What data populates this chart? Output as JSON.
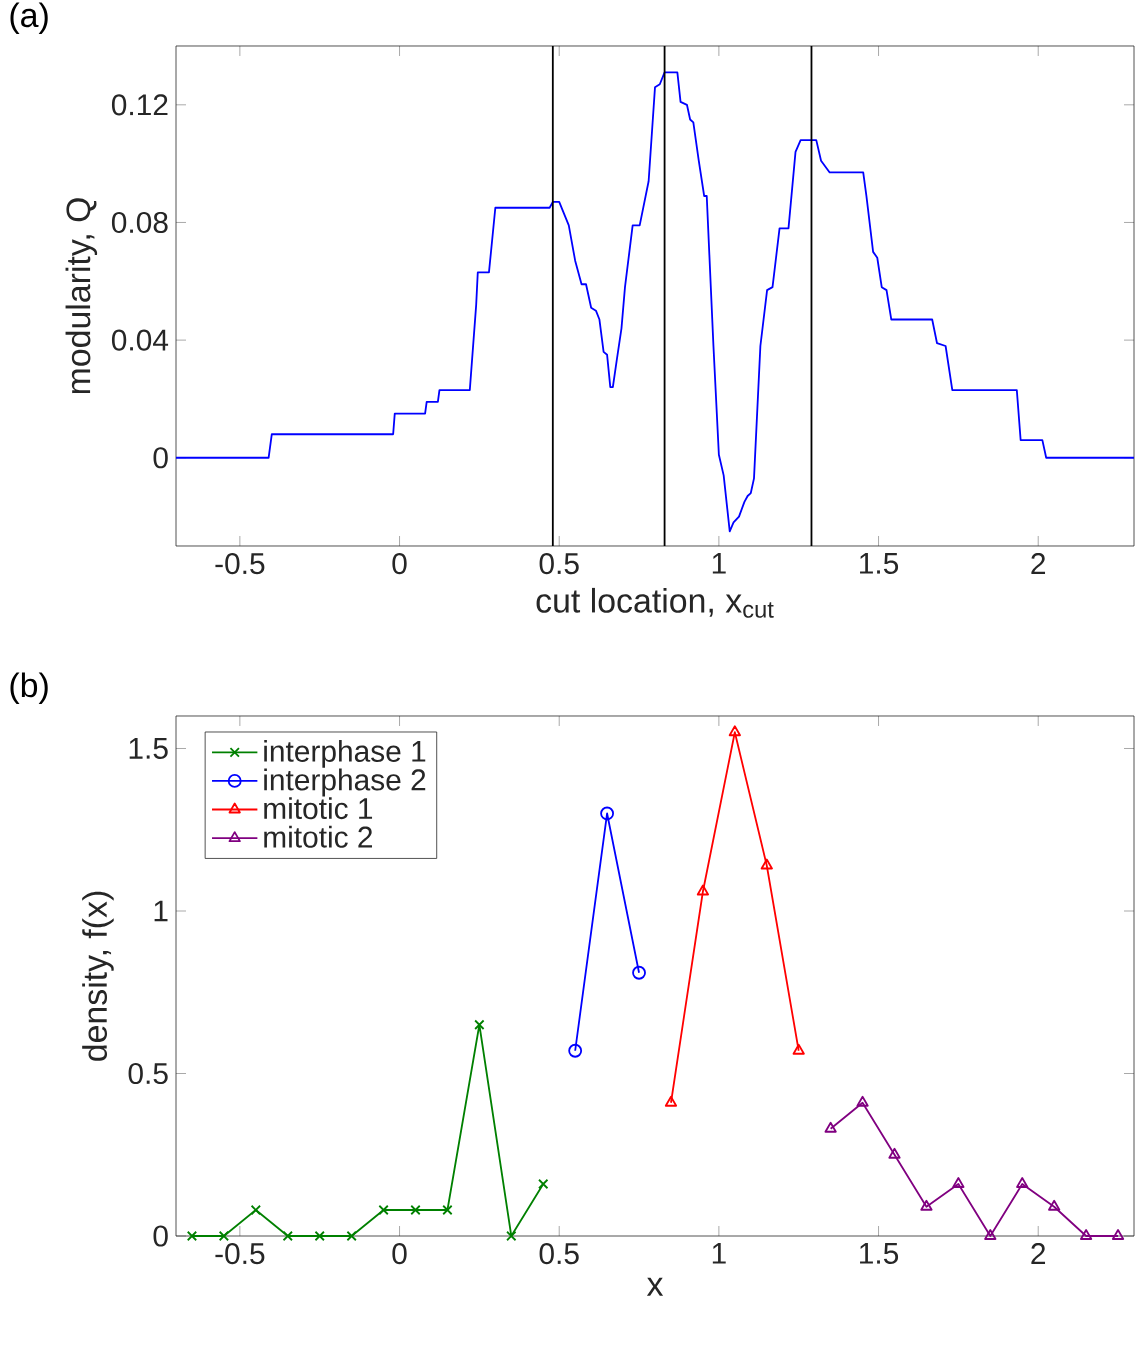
{
  "chart_data": [
    {
      "type": "line",
      "annotations": [
        "(a)"
      ],
      "xlabel": "cut location, x$_{cut}$",
      "ylabel": "modularity, Q",
      "x": [
        -0.7,
        -0.41,
        -0.4,
        -0.02,
        -0.015,
        0.08,
        0.085,
        0.12,
        0.125,
        0.22,
        0.24,
        0.245,
        0.28,
        0.3,
        0.47,
        0.48,
        0.5,
        0.53,
        0.55,
        0.57,
        0.584,
        0.6,
        0.615,
        0.626,
        0.639,
        0.65,
        0.66,
        0.668,
        0.68,
        0.695,
        0.706,
        0.73,
        0.752,
        0.78,
        0.8,
        0.815,
        0.83,
        0.87,
        0.88,
        0.9,
        0.91,
        0.92,
        0.937,
        0.954,
        0.962,
        0.983,
        1.0,
        1.015,
        1.025,
        1.034,
        1.046,
        1.063,
        1.08,
        1.09,
        1.1,
        1.11,
        1.13,
        1.151,
        1.168,
        1.19,
        1.218,
        1.24,
        1.256,
        1.305,
        1.32,
        1.347,
        1.452,
        1.462,
        1.483,
        1.496,
        1.51,
        1.525,
        1.54,
        1.668,
        1.683,
        1.71,
        1.731,
        1.933,
        1.945,
        2.013,
        2.025,
        2.3
      ],
      "series": [
        {
          "color": "#0000ff",
          "values": [
            0,
            0,
            0.008,
            0.008,
            0.015,
            0.015,
            0.019,
            0.019,
            0.023,
            0.023,
            0.052,
            0.063,
            0.063,
            0.085,
            0.085,
            0.087,
            0.087,
            0.079,
            0.067,
            0.059,
            0.059,
            0.051,
            0.05,
            0.047,
            0.036,
            0.035,
            0.024,
            0.024,
            0.033,
            0.044,
            0.058,
            0.079,
            0.079,
            0.094,
            0.126,
            0.127,
            0.131,
            0.131,
            0.121,
            0.12,
            0.115,
            0.114,
            0.101,
            0.089,
            0.089,
            0.038,
            0.001,
            -0.006,
            -0.016,
            -0.025,
            -0.022,
            -0.02,
            -0.015,
            -0.013,
            -0.012,
            -0.007,
            0.038,
            0.057,
            0.058,
            0.078,
            0.078,
            0.104,
            0.108,
            0.108,
            0.101,
            0.097,
            0.097,
            0.089,
            0.07,
            0.068,
            0.058,
            0.057,
            0.047,
            0.047,
            0.039,
            0.038,
            0.023,
            0.023,
            0.006,
            0.006,
            0,
            0
          ]
        }
      ],
      "xlim": [
        -0.7,
        2.3
      ],
      "ylim": [
        -0.03,
        0.14
      ],
      "xticks": [
        -0.5,
        0,
        0.5,
        1,
        1.5,
        2
      ],
      "yticks": [
        0,
        0.04,
        0.08,
        0.12
      ],
      "ref_lines": [
        {
          "axis": "x",
          "value": 0.48,
          "color": "#000000"
        },
        {
          "axis": "x",
          "value": 0.83,
          "color": "#000000"
        },
        {
          "axis": "x",
          "value": 1.29,
          "color": "#000000"
        }
      ]
    },
    {
      "type": "line",
      "annotations": [
        "(b)"
      ],
      "xlabel": "x",
      "ylabel": "density, f(x)",
      "legend": "top left",
      "series": [
        {
          "name": "interphase 1",
          "color": "#008000",
          "marker": "cross",
          "x": [
            -0.65,
            -0.55,
            -0.45,
            -0.35,
            -0.25,
            -0.15,
            -0.05,
            0.05,
            0.15,
            0.25,
            0.35,
            0.45
          ],
          "values": [
            0,
            0,
            0.08,
            0,
            0,
            0,
            0.08,
            0.08,
            0.08,
            0.65,
            0,
            0.16
          ]
        },
        {
          "name": "interphase 2",
          "color": "#0000ff",
          "marker": "circle",
          "x": [
            0.55,
            0.65,
            0.75
          ],
          "values": [
            0.57,
            1.3,
            0.81
          ]
        },
        {
          "name": "mitotic 1",
          "color": "#ff0000",
          "marker": "triangle",
          "x": [
            0.85,
            0.95,
            1.05,
            1.15,
            1.25
          ],
          "values": [
            0.41,
            1.06,
            1.55,
            1.14,
            0.57
          ]
        },
        {
          "name": "mitotic 2",
          "color": "#800080",
          "marker": "triangle",
          "x": [
            1.35,
            1.45,
            1.55,
            1.65,
            1.75,
            1.85,
            1.95,
            2.05,
            2.15,
            2.25
          ],
          "values": [
            0.33,
            0.41,
            0.25,
            0.09,
            0.16,
            0,
            0.16,
            0.09,
            0,
            0
          ]
        }
      ],
      "xlim": [
        -0.7,
        2.3
      ],
      "ylim": [
        0,
        1.6
      ],
      "xticks": [
        -0.5,
        0,
        0.5,
        1,
        1.5,
        2
      ],
      "yticks": [
        0,
        0.5,
        1,
        1.5
      ]
    }
  ]
}
